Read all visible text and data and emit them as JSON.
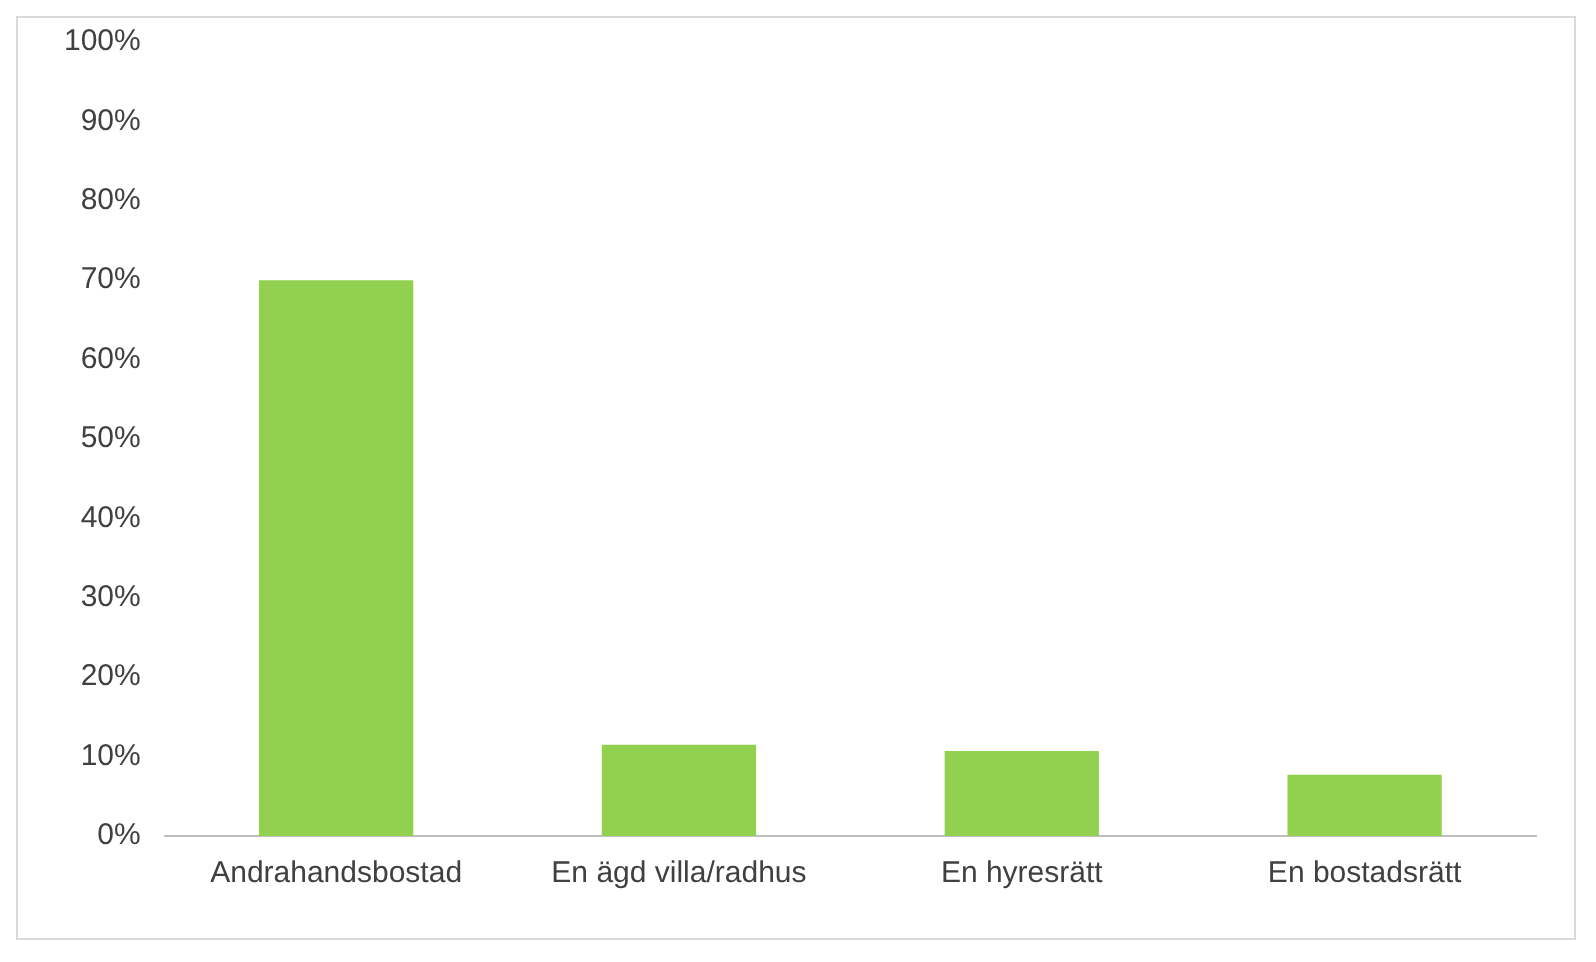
{
  "chart_data": {
    "type": "bar",
    "categories": [
      "Andrahandsbostad",
      "En ägd villa/radhus",
      "En hyresrätt",
      "En bostadsrätt"
    ],
    "values": [
      70,
      11.5,
      10.7,
      7.7
    ],
    "color": "#92d050",
    "ylim": [
      0,
      100
    ],
    "yticks": [
      {
        "value": 0,
        "label": "0%"
      },
      {
        "value": 10,
        "label": "10%"
      },
      {
        "value": 20,
        "label": "20%"
      },
      {
        "value": 30,
        "label": "30%"
      },
      {
        "value": 40,
        "label": "40%"
      },
      {
        "value": 50,
        "label": "50%"
      },
      {
        "value": 60,
        "label": "60%"
      },
      {
        "value": 70,
        "label": "70%"
      },
      {
        "value": 80,
        "label": "80%"
      },
      {
        "value": 90,
        "label": "90%"
      },
      {
        "value": 100,
        "label": "100%"
      }
    ],
    "grid": false,
    "legend": false
  }
}
